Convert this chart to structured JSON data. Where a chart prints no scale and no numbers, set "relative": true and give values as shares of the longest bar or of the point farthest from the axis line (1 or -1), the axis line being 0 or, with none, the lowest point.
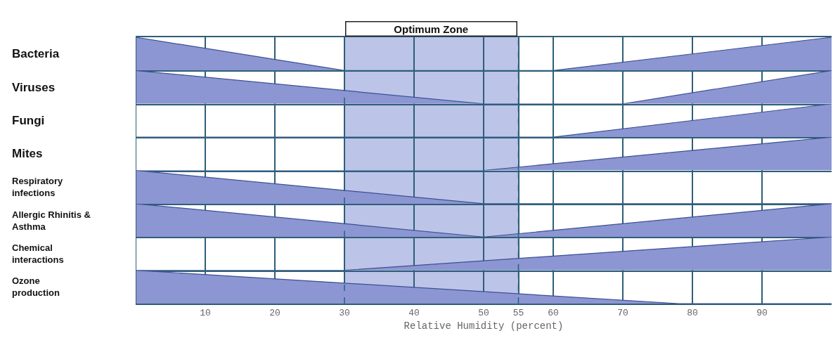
{
  "chart_data": [
    {
      "type": "area",
      "relative": true,
      "ylabel": "Bacteria",
      "xlim": [
        0,
        100
      ],
      "xticks": [
        10,
        20,
        30,
        40,
        50,
        55,
        60,
        70,
        80,
        90
      ],
      "tick_labels": false,
      "grid": "x",
      "bands": [
        {
          "axis": "x",
          "from": 30,
          "to": 55,
          "label": "Optimum Zone",
          "color": "#bcc4e8"
        }
      ],
      "series": [
        {
          "color": "#8c96d2",
          "x": [
            0,
            30,
            60,
            100
          ],
          "values": [
            1,
            0,
            0,
            1
          ]
        }
      ]
    },
    {
      "type": "area",
      "relative": true,
      "ylabel": "Viruses",
      "xlim": [
        0,
        100
      ],
      "xticks": [
        10,
        20,
        30,
        40,
        50,
        55,
        60,
        70,
        80,
        90
      ],
      "tick_labels": false,
      "grid": "x",
      "bands": [
        {
          "axis": "x",
          "from": 30,
          "to": 55,
          "color": "#bcc4e8"
        }
      ],
      "series": [
        {
          "color": "#8c96d2",
          "x": [
            0,
            50,
            70,
            100
          ],
          "values": [
            1,
            0,
            0,
            1
          ]
        }
      ]
    },
    {
      "type": "area",
      "relative": true,
      "ylabel": "Fungi",
      "xlim": [
        0,
        100
      ],
      "xticks": [
        10,
        20,
        30,
        40,
        50,
        55,
        60,
        70,
        80,
        90
      ],
      "tick_labels": false,
      "grid": "x",
      "bands": [
        {
          "axis": "x",
          "from": 30,
          "to": 55,
          "color": "#bcc4e8"
        }
      ],
      "series": [
        {
          "color": "#8c96d2",
          "x": [
            0,
            60,
            100
          ],
          "values": [
            0,
            0,
            1
          ]
        }
      ]
    },
    {
      "type": "area",
      "relative": true,
      "ylabel": "Mites",
      "xlim": [
        0,
        100
      ],
      "xticks": [
        10,
        20,
        30,
        40,
        50,
        55,
        60,
        70,
        80,
        90
      ],
      "tick_labels": false,
      "grid": "x",
      "bands": [
        {
          "axis": "x",
          "from": 30,
          "to": 55,
          "color": "#bcc4e8"
        }
      ],
      "series": [
        {
          "color": "#8c96d2",
          "x": [
            0,
            50,
            100
          ],
          "values": [
            0,
            0,
            1
          ]
        }
      ]
    },
    {
      "type": "area",
      "relative": true,
      "ylabel": "Respiratory\ninfections",
      "xlim": [
        0,
        100
      ],
      "xticks": [
        10,
        20,
        30,
        40,
        50,
        55,
        60,
        70,
        80,
        90
      ],
      "tick_labels": false,
      "grid": "x",
      "bands": [
        {
          "axis": "x",
          "from": 30,
          "to": 55,
          "color": "#bcc4e8"
        }
      ],
      "series": [
        {
          "color": "#8c96d2",
          "x": [
            0,
            50,
            100
          ],
          "values": [
            1,
            0,
            0
          ]
        }
      ]
    },
    {
      "type": "area",
      "relative": true,
      "ylabel": "Allergic Rhinitis &\nAsthma",
      "xlim": [
        0,
        100
      ],
      "xticks": [
        10,
        20,
        30,
        40,
        50,
        55,
        60,
        70,
        80,
        90
      ],
      "tick_labels": false,
      "grid": "x",
      "bands": [
        {
          "axis": "x",
          "from": 30,
          "to": 55,
          "color": "#bcc4e8"
        }
      ],
      "series": [
        {
          "color": "#8c96d2",
          "x": [
            0,
            50,
            100
          ],
          "values": [
            1,
            0,
            1
          ]
        }
      ]
    },
    {
      "type": "area",
      "relative": true,
      "ylabel": "Chemical\ninteractions",
      "xlim": [
        0,
        100
      ],
      "xticks": [
        10,
        20,
        30,
        40,
        50,
        55,
        60,
        70,
        80,
        90
      ],
      "tick_labels": false,
      "grid": "x",
      "bands": [
        {
          "axis": "x",
          "from": 30,
          "to": 55,
          "color": "#bcc4e8"
        }
      ],
      "series": [
        {
          "color": "#8c96d2",
          "x": [
            0,
            30,
            100
          ],
          "values": [
            0,
            0,
            1
          ]
        }
      ]
    },
    {
      "type": "area",
      "relative": true,
      "ylabel": "Ozone\nproduction",
      "xlabel": "Relative Humidity (percent)",
      "xlim": [
        0,
        100
      ],
      "xticks": [
        10,
        20,
        30,
        40,
        50,
        55,
        60,
        70,
        80,
        90
      ],
      "tick_labels": "x",
      "grid": "x",
      "bands": [
        {
          "axis": "x",
          "from": 30,
          "to": 55,
          "color": "#bcc4e8"
        }
      ],
      "series": [
        {
          "color": "#8c96d2",
          "x": [
            0,
            78,
            100
          ],
          "values": [
            1,
            0,
            0
          ]
        }
      ]
    }
  ]
}
